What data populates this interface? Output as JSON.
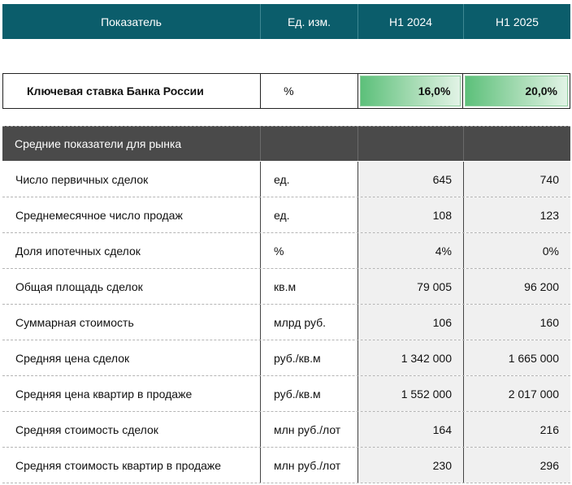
{
  "header": {
    "indicator": "Показатель",
    "unit": "Ед. изм.",
    "period1": "H1 2024",
    "period2": "H1 2025"
  },
  "key_rate": {
    "label": "Ключевая ставка Банка России",
    "unit": "%",
    "value1": "16,0%",
    "value2": "20,0%",
    "bar_color": "#5cc07a"
  },
  "section": {
    "title": "Средние показатели для рынка"
  },
  "rows": [
    {
      "label": "Число первичных сделок",
      "unit": "ед.",
      "v1": "645",
      "v2": "740"
    },
    {
      "label": "Среднемесячное число продаж",
      "unit": "ед.",
      "v1": "108",
      "v2": "123"
    },
    {
      "label": "Доля ипотечных сделок",
      "unit": "%",
      "v1": "4%",
      "v2": "0%"
    },
    {
      "label": "Общая площадь сделок",
      "unit": "кв.м",
      "v1": "79 005",
      "v2": "96 200"
    },
    {
      "label": "Суммарная стоимость",
      "unit": "млрд руб.",
      "v1": "106",
      "v2": "160"
    },
    {
      "label": "Средняя цена сделок",
      "unit": "руб./кв.м",
      "v1": "1 342 000",
      "v2": "1 665 000"
    },
    {
      "label": "Средняя цена квартир в продаже",
      "unit": "руб./кв.м",
      "v1": "1 552 000",
      "v2": "2 017 000"
    },
    {
      "label": "Средняя стоимость сделок",
      "unit": "млн руб./лот",
      "v1": "164",
      "v2": "216"
    },
    {
      "label": "Средняя стоимость квартир в продаже",
      "unit": "млн руб./лот",
      "v1": "230",
      "v2": "296"
    }
  ],
  "colors": {
    "header_bg": "#0b5d6b",
    "section_bg": "#4a4a4a",
    "value_cell_bg": "#f0f0f0"
  }
}
